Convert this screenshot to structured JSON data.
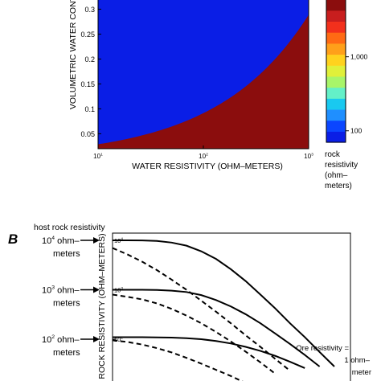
{
  "chart_data": [
    {
      "type": "heatmap",
      "panel": "A",
      "xlabel": "WATER RESISTIVITY (OHM–METERS)",
      "ylabel": "VOLUMETRIC WATER CONTENT",
      "x_scale": "log",
      "xlim": [
        10,
        1000
      ],
      "x_ticks": [
        {
          "value": 10,
          "base": "10",
          "exp": "1"
        },
        {
          "value": 100,
          "base": "10",
          "exp": "2"
        },
        {
          "value": 1000,
          "base": "10",
          "exp": "3"
        }
      ],
      "ylim": [
        0.02,
        0.32
      ],
      "y_ticks": [
        "0.05",
        "0.1",
        "0.15",
        "0.2",
        "0.25",
        "0.3"
      ],
      "contour_levels": [
        12000,
        6000,
        3500,
        2000,
        1300,
        900,
        600,
        420,
        300,
        220,
        160,
        120,
        90
      ],
      "colorbar": {
        "scale": "log",
        "range": [
          70,
          6000
        ],
        "tick_labels": [
          "100",
          "1,000"
        ],
        "tick_values": [
          100,
          1000
        ],
        "label_lines": [
          "rock",
          "resistivity",
          "(ohm–",
          "meters)"
        ],
        "colors": [
          "#0a1ee6",
          "#0b46ff",
          "#1f8fff",
          "#19c9f0",
          "#64f0c8",
          "#a8f56a",
          "#e0f03a",
          "#ffd21e",
          "#ffa01a",
          "#ff6a14",
          "#f2301c",
          "#c81e1e",
          "#8b0d0d"
        ]
      }
    },
    {
      "type": "line",
      "panel": "B",
      "panel_label": "B",
      "ylabel": "ROCK RESISTIVITY (OHM–METERS)",
      "y_scale": "log",
      "y_ticks": [
        {
          "value": 100,
          "base": "10",
          "exp": "2"
        },
        {
          "value": 1000,
          "base": "10",
          "exp": "3"
        },
        {
          "value": 10000,
          "base": "10",
          "exp": "4"
        }
      ],
      "series": [
        {
          "style": "solid",
          "values": [
            10000,
            10000,
            9950,
            9700,
            9000,
            7800,
            6000,
            4200,
            2600,
            1500,
            800,
            420,
            210,
            110,
            55,
            28
          ]
        },
        {
          "style": "dashed",
          "values": [
            7000,
            5200,
            3700,
            2500,
            1600,
            1000,
            600,
            360,
            210,
            120,
            70,
            40,
            23
          ]
        },
        {
          "style": "solid",
          "values": [
            1000,
            1000,
            998,
            990,
            960,
            900,
            780,
            620,
            460,
            320,
            210,
            130,
            80,
            48,
            28
          ]
        },
        {
          "style": "dashed",
          "values": [
            800,
            720,
            640,
            530,
            410,
            300,
            210,
            140,
            90,
            56,
            34,
            20
          ]
        },
        {
          "style": "solid",
          "values": [
            110,
            110,
            110,
            109,
            108,
            105,
            100,
            92,
            82,
            70,
            58,
            46,
            35,
            26
          ]
        },
        {
          "style": "dashed",
          "values": [
            95,
            88,
            78,
            66,
            54,
            42,
            32,
            24,
            18,
            13
          ]
        }
      ],
      "annotations": {
        "host_title": "host rock resistivity",
        "host_labels": [
          {
            "base": "10",
            "exp": "4",
            "line1": " ohm–",
            "line2": "meters"
          },
          {
            "base": "10",
            "exp": "3",
            "line1": " ohm–",
            "line2": "meters"
          },
          {
            "base": "10",
            "exp": "2",
            "line1": " ohm–",
            "line2": "meters"
          }
        ],
        "ore_label_lines": [
          "Ore resistivity =",
          "1 ohm–",
          "meter"
        ]
      }
    }
  ]
}
